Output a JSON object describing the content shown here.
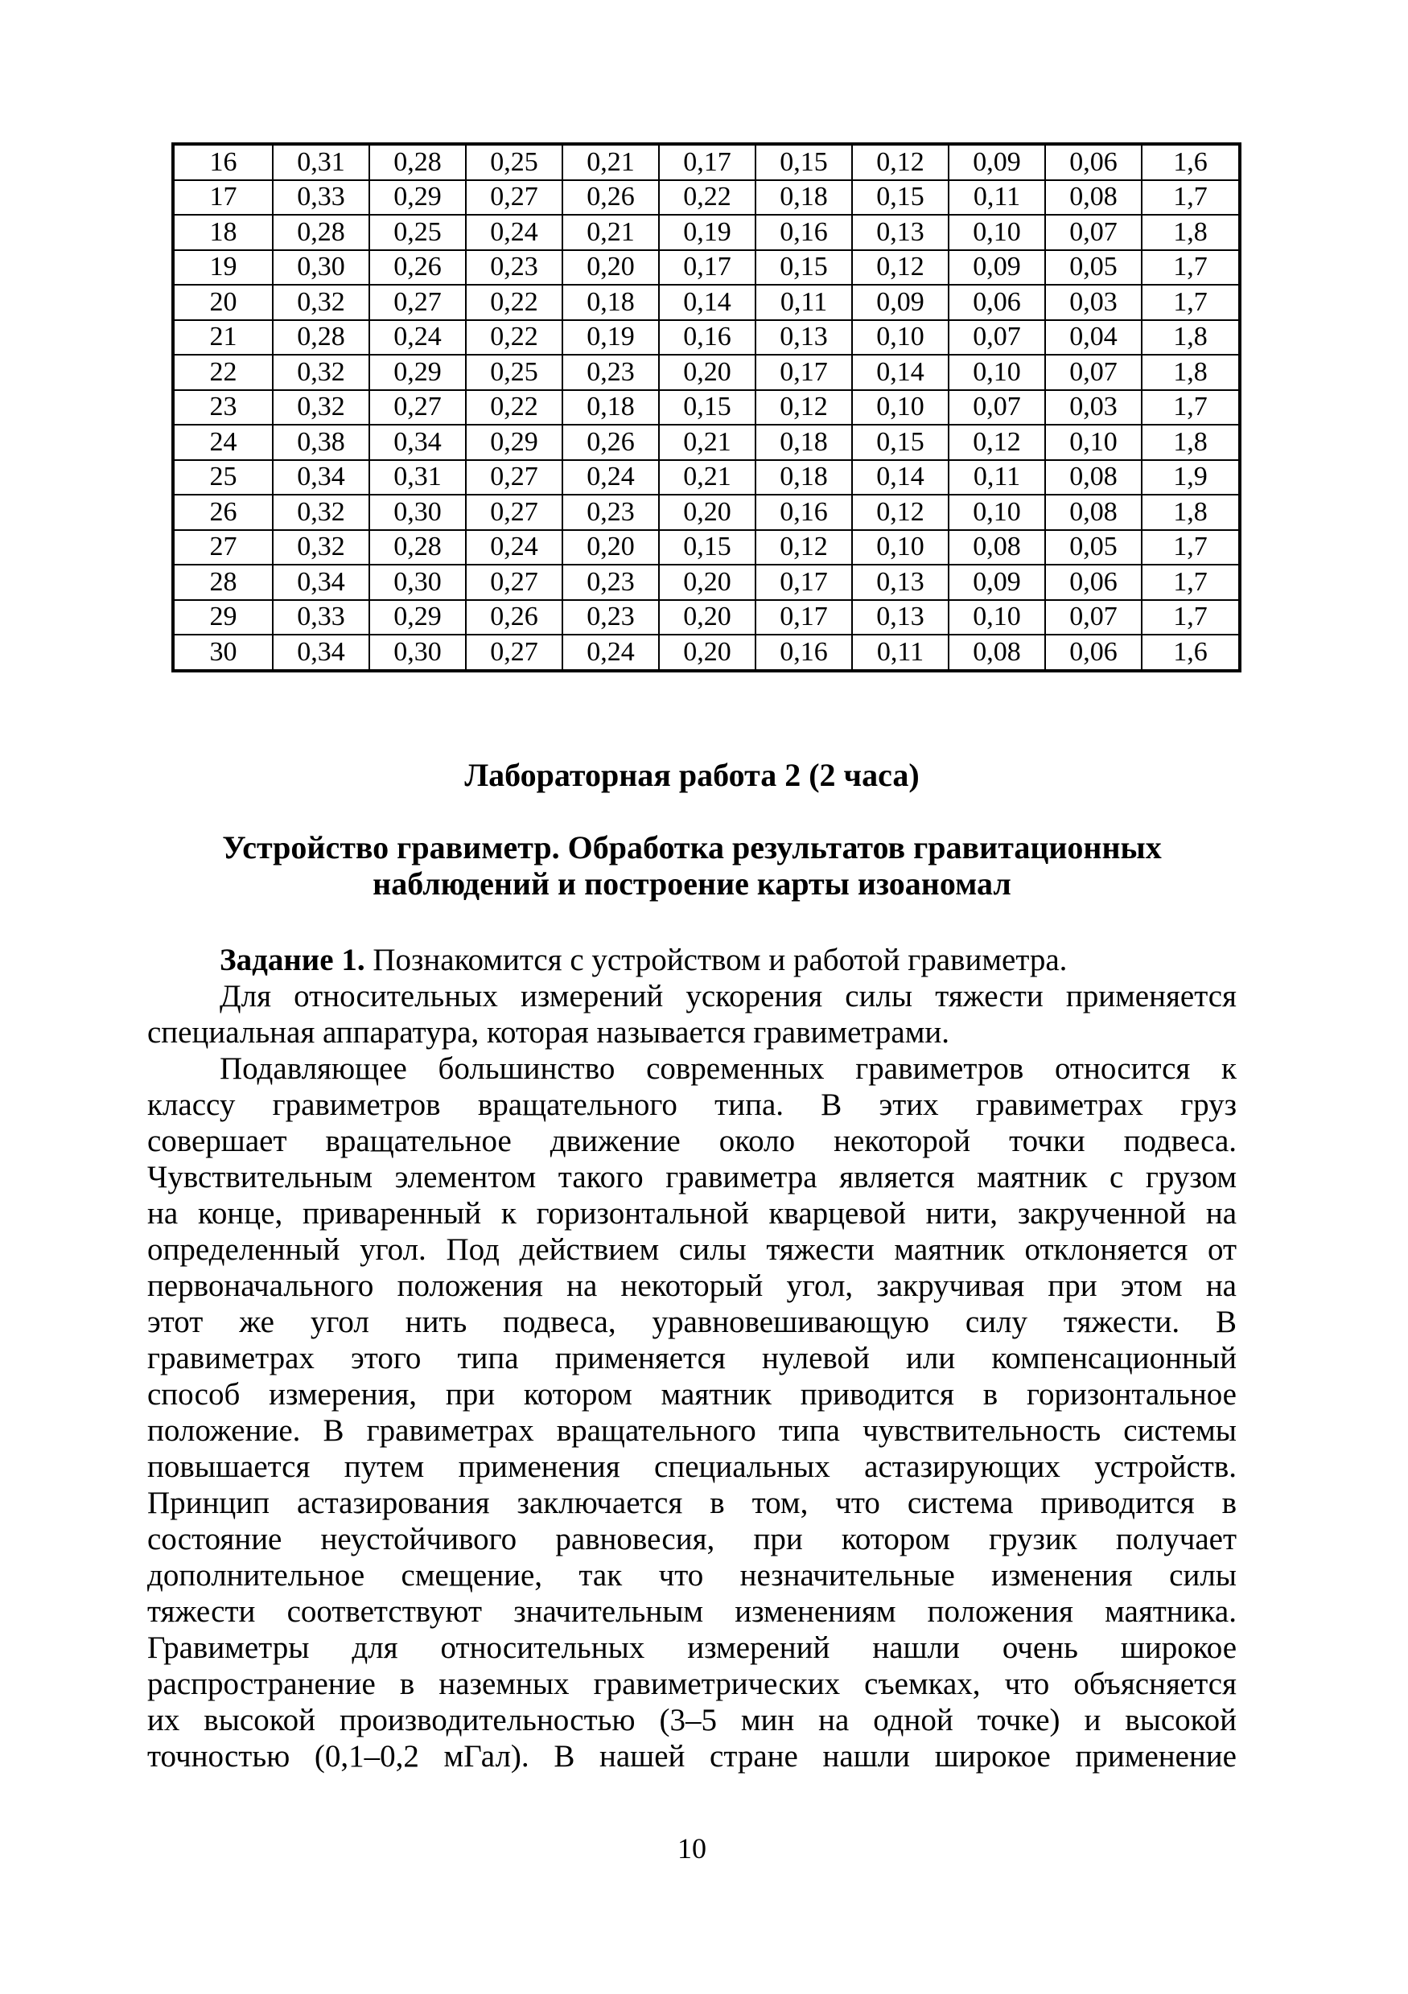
{
  "page": {
    "number": "10"
  },
  "table": {
    "rows": [
      [
        "16",
        "0,31",
        "0,28",
        "0,25",
        "0,21",
        "0,17",
        "0,15",
        "0,12",
        "0,09",
        "0,06",
        "1,6"
      ],
      [
        "17",
        "0,33",
        "0,29",
        "0,27",
        "0,26",
        "0,22",
        "0,18",
        "0,15",
        "0,11",
        "0,08",
        "1,7"
      ],
      [
        "18",
        "0,28",
        "0,25",
        "0,24",
        "0,21",
        "0,19",
        "0,16",
        "0,13",
        "0,10",
        "0,07",
        "1,8"
      ],
      [
        "19",
        "0,30",
        "0,26",
        "0,23",
        "0,20",
        "0,17",
        "0,15",
        "0,12",
        "0,09",
        "0,05",
        "1,7"
      ],
      [
        "20",
        "0,32",
        "0,27",
        "0,22",
        "0,18",
        "0,14",
        "0,11",
        "0,09",
        "0,06",
        "0,03",
        "1,7"
      ],
      [
        "21",
        "0,28",
        "0,24",
        "0,22",
        "0,19",
        "0,16",
        "0,13",
        "0,10",
        "0,07",
        "0,04",
        "1,8"
      ],
      [
        "22",
        "0,32",
        "0,29",
        "0,25",
        "0,23",
        "0,20",
        "0,17",
        "0,14",
        "0,10",
        "0,07",
        "1,8"
      ],
      [
        "23",
        "0,32",
        "0,27",
        "0,22",
        "0,18",
        "0,15",
        "0,12",
        "0,10",
        "0,07",
        "0,03",
        "1,7"
      ],
      [
        "24",
        "0,38",
        "0,34",
        "0,29",
        "0,26",
        "0,21",
        "0,18",
        "0,15",
        "0,12",
        "0,10",
        "1,8"
      ],
      [
        "25",
        "0,34",
        "0,31",
        "0,27",
        "0,24",
        "0,21",
        "0,18",
        "0,14",
        "0,11",
        "0,08",
        "1,9"
      ],
      [
        "26",
        "0,32",
        "0,30",
        "0,27",
        "0,23",
        "0,20",
        "0,16",
        "0,12",
        "0,10",
        "0,08",
        "1,8"
      ],
      [
        "27",
        "0,32",
        "0,28",
        "0,24",
        "0,20",
        "0,15",
        "0,12",
        "0,10",
        "0,08",
        "0,05",
        "1,7"
      ],
      [
        "28",
        "0,34",
        "0,30",
        "0,27",
        "0,23",
        "0,20",
        "0,17",
        "0,13",
        "0,09",
        "0,06",
        "1,7"
      ],
      [
        "29",
        "0,33",
        "0,29",
        "0,26",
        "0,23",
        "0,20",
        "0,17",
        "0,13",
        "0,10",
        "0,07",
        "1,7"
      ],
      [
        "30",
        "0,34",
        "0,30",
        "0,27",
        "0,24",
        "0,20",
        "0,16",
        "0,11",
        "0,08",
        "0,06",
        "1,6"
      ]
    ]
  },
  "headings": {
    "lab_title": "Лабораторная работа 2 (2 часа)",
    "subtitle_line1": "Устройство гравиметр. Обработка результатов гравитационных",
    "subtitle_line2": "наблюдений и построение карты изоаномал"
  },
  "body": {
    "task_label": "Задание 1.",
    "task_rest": " Познакомится с устройством и работой гравиметра.",
    "lines": [
      {
        "t": "Для относительных измерений ускорения силы тяжести применяется",
        "para_start": true,
        "fill": true
      },
      {
        "t": "специальная аппаратура, которая называется гравиметрами.",
        "para_start": false,
        "fill": false
      },
      {
        "t": "Подавляющее большинство современных гравиметров относится к",
        "para_start": true,
        "fill": true
      },
      {
        "t": "классу гравиметров вращательного типа. В этих гравиметрах груз",
        "para_start": false,
        "fill": true
      },
      {
        "t": "совершает вращательное движение около некоторой точки подвеса.",
        "para_start": false,
        "fill": true
      },
      {
        "t": "Чувствительным элементом такого гравиметра является маятник с грузом",
        "para_start": false,
        "fill": true
      },
      {
        "t": "на конце, приваренный к горизонтальной кварцевой нити, закрученной на",
        "para_start": false,
        "fill": true
      },
      {
        "t": "определенный угол. Под действием силы тяжести маятник отклоняется от",
        "para_start": false,
        "fill": true
      },
      {
        "t": "первоначального положения на некоторый угол, закручивая при этом на",
        "para_start": false,
        "fill": true
      },
      {
        "t": "этот же угол нить подвеса, уравновешивающую силу тяжести. В",
        "para_start": false,
        "fill": true
      },
      {
        "t": "гравиметрах этого типа применяется нулевой или компенсационный",
        "para_start": false,
        "fill": true
      },
      {
        "t": "способ измерения, при котором маятник приводится в горизонтальное",
        "para_start": false,
        "fill": true
      },
      {
        "t": "положение. В гравиметрах вращательного типа чувствительность системы",
        "para_start": false,
        "fill": true
      },
      {
        "t": "повышается путем применения специальных астазирующих устройств.",
        "para_start": false,
        "fill": true
      },
      {
        "t": "Принцип астазирования заключается в том, что система приводится в",
        "para_start": false,
        "fill": true
      },
      {
        "t": "состояние неустойчивого равновесия, при котором грузик получает",
        "para_start": false,
        "fill": true
      },
      {
        "t": "дополнительное смещение, так что незначительные изменения силы",
        "para_start": false,
        "fill": true
      },
      {
        "t": "тяжести соответствуют значительным изменениям положения маятника.",
        "para_start": false,
        "fill": true
      },
      {
        "t": "Гравиметры для относительных измерений нашли очень широкое",
        "para_start": false,
        "fill": true
      },
      {
        "t": "распространение в наземных гравиметрических съемках, что объясняется",
        "para_start": false,
        "fill": true
      },
      {
        "t": "их высокой производительностью (3–5 мин на одной точке) и высокой",
        "para_start": false,
        "fill": true
      },
      {
        "t": "точностью (0,1–0,2 мГал). В нашей стране нашли широкое применение",
        "para_start": false,
        "fill": true
      }
    ]
  }
}
